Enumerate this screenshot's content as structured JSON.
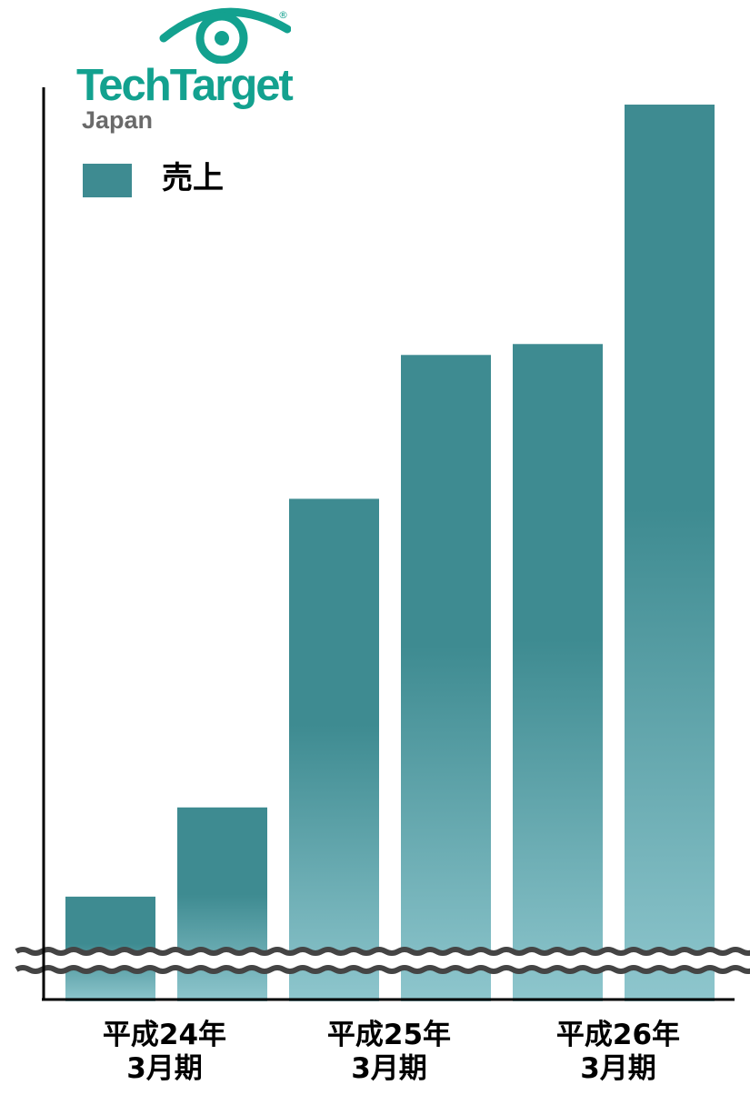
{
  "logo": {
    "brand": "TechTarget",
    "sub": "Japan",
    "registered": "®",
    "icon": "eye-icon"
  },
  "chart_data": {
    "type": "bar",
    "title": "",
    "legend": [
      "売上"
    ],
    "legend_position": "top-left",
    "grid": false,
    "axis_break": true,
    "series": [
      {
        "name": "売上",
        "values": [
          115,
          213,
          552,
          710,
          722,
          985
        ]
      }
    ],
    "group_labels": [
      {
        "line1": "平成24年",
        "line2": "3月期"
      },
      {
        "line1": "平成25年",
        "line2": "3月期"
      },
      {
        "line1": "平成26年",
        "line2": "3月期"
      }
    ],
    "ylim": [
      0,
      1000
    ],
    "colors": {
      "bar_top": "#3e8b91",
      "bar_bottom": "#8ec6cd",
      "break_line": "#444444",
      "axis": "#000000"
    }
  }
}
